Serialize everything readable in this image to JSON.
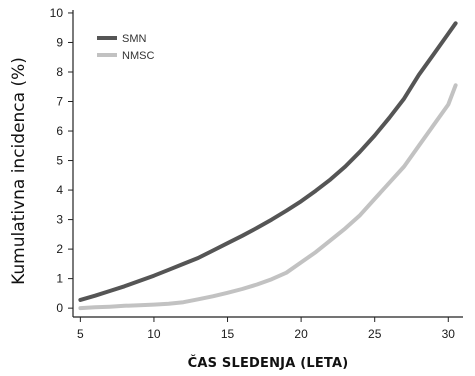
{
  "chart_data": {
    "type": "line",
    "title": "",
    "xlabel": "ČAS SLEDENJA (LETA)",
    "ylabel": "Kumulativna incidenca (%)",
    "xlim": [
      4.5,
      31
    ],
    "ylim": [
      -0.3,
      10.1
    ],
    "xticks": [
      5,
      10,
      15,
      20,
      25,
      30
    ],
    "yticks": [
      0,
      1,
      2,
      3,
      4,
      5,
      6,
      7,
      8,
      9,
      10
    ],
    "grid": false,
    "legend_position": "top-left",
    "series": [
      {
        "name": "SMN",
        "color": "#555555",
        "x": [
          5,
          6,
          7,
          8,
          9,
          10,
          11,
          12,
          13,
          14,
          15,
          16,
          17,
          18,
          19,
          20,
          21,
          22,
          23,
          24,
          25,
          26,
          27,
          28,
          29,
          30,
          30.5
        ],
        "y": [
          0.28,
          0.42,
          0.58,
          0.74,
          0.92,
          1.1,
          1.3,
          1.5,
          1.7,
          1.95,
          2.2,
          2.45,
          2.72,
          3.0,
          3.3,
          3.62,
          3.98,
          4.36,
          4.8,
          5.3,
          5.85,
          6.45,
          7.1,
          7.9,
          8.6,
          9.3,
          9.65
        ]
      },
      {
        "name": "NMSC",
        "color": "#c2c2c2",
        "x": [
          5,
          6,
          7,
          8,
          9,
          10,
          11,
          12,
          13,
          14,
          15,
          16,
          17,
          18,
          19,
          20,
          21,
          22,
          23,
          24,
          25,
          26,
          27,
          28,
          29,
          30,
          30.5
        ],
        "y": [
          0.0,
          0.03,
          0.05,
          0.08,
          0.1,
          0.12,
          0.15,
          0.2,
          0.3,
          0.4,
          0.52,
          0.65,
          0.8,
          0.98,
          1.2,
          1.55,
          1.9,
          2.3,
          2.7,
          3.15,
          3.7,
          4.25,
          4.8,
          5.5,
          6.2,
          6.9,
          7.55
        ]
      }
    ]
  }
}
